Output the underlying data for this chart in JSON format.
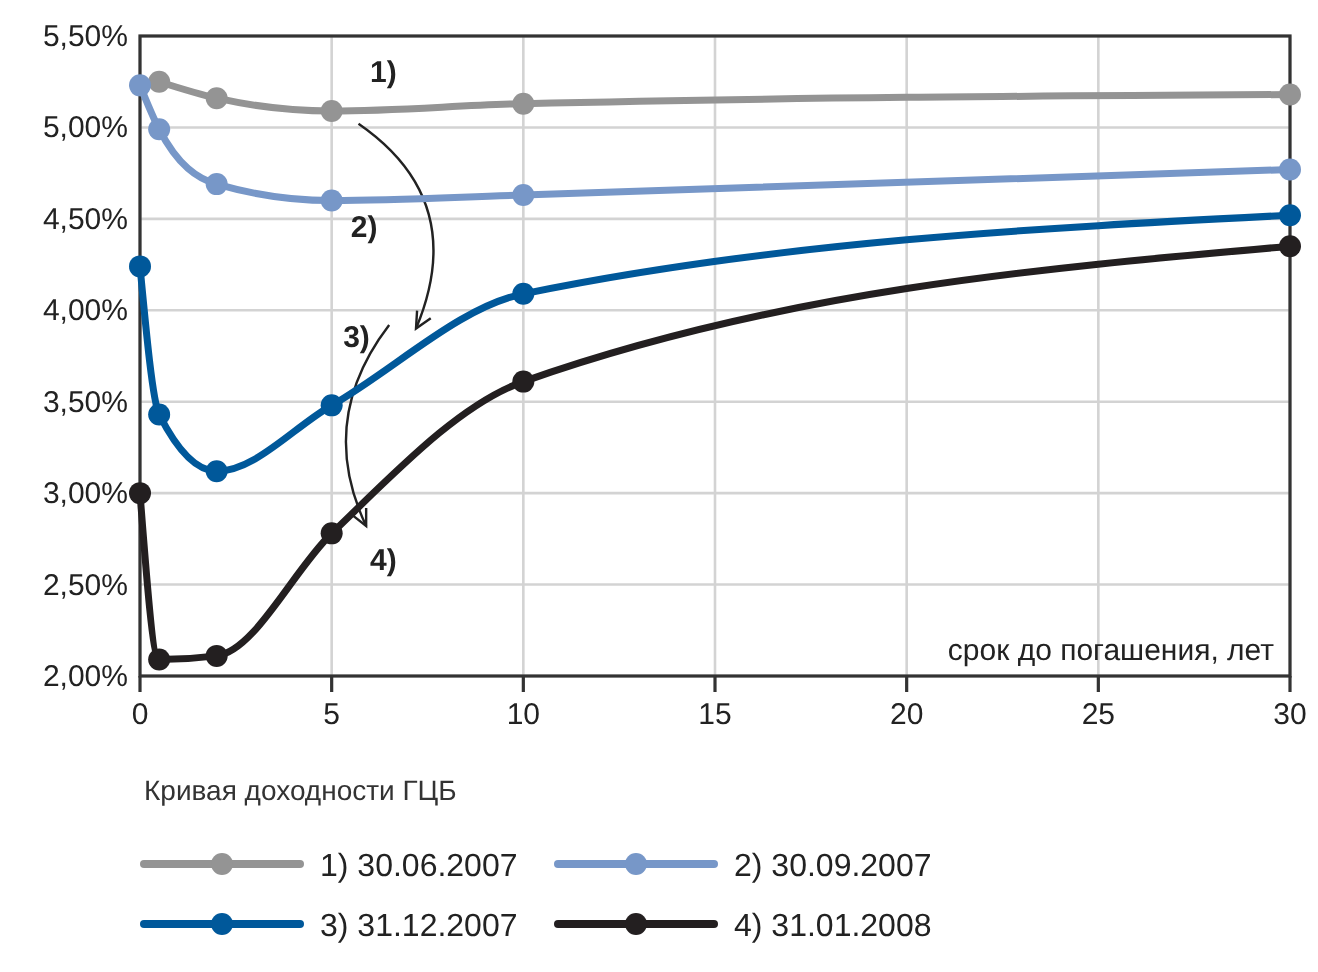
{
  "chart_data": {
    "type": "line",
    "xlabel": "срок до погашения, лет",
    "legend_title": "Кривая доходности ГЦБ",
    "legend": "bottom",
    "grid": true,
    "marker": "circle",
    "line_style": "solid",
    "xlim": [
      0,
      30
    ],
    "xticks": [
      0,
      5,
      10,
      15,
      20,
      25,
      30
    ],
    "ylim": [
      2,
      5.5
    ],
    "yticks": [
      {
        "value": 2,
        "label": "2,00%"
      },
      {
        "value": 2.5,
        "label": "2,50%"
      },
      {
        "value": 3,
        "label": "3,00%"
      },
      {
        "value": 3.5,
        "label": "3,50%"
      },
      {
        "value": 4,
        "label": "4,00%"
      },
      {
        "value": 4.5,
        "label": "4,50%"
      },
      {
        "value": 5,
        "label": "5,00%"
      },
      {
        "value": 5.5,
        "label": "5,50%"
      }
    ],
    "series": [
      {
        "name": "1) 30.06.2007",
        "color": "#949494",
        "x": [
          0.5,
          2,
          5,
          10,
          30
        ],
        "values": [
          5.25,
          5.16,
          5.09,
          5.13,
          5.18
        ]
      },
      {
        "name": "2) 30.09.2007",
        "color": "#7797c8",
        "x": [
          0,
          0.5,
          2,
          5,
          10,
          30
        ],
        "values": [
          5.23,
          4.99,
          4.69,
          4.6,
          4.63,
          4.77
        ]
      },
      {
        "name": "3) 31.12.2007",
        "color": "#00589a",
        "x": [
          0,
          0.5,
          2,
          5,
          10,
          30
        ],
        "values": [
          4.24,
          3.43,
          3.12,
          3.48,
          4.09,
          4.52
        ]
      },
      {
        "name": "4) 31.01.2008",
        "color": "#231f20",
        "x": [
          0,
          0.5,
          2,
          5,
          10,
          30
        ],
        "values": [
          3.0,
          2.09,
          2.11,
          2.78,
          3.61,
          4.35
        ]
      }
    ],
    "annotations": [
      "1)",
      "2)",
      "3)",
      "4)"
    ]
  }
}
